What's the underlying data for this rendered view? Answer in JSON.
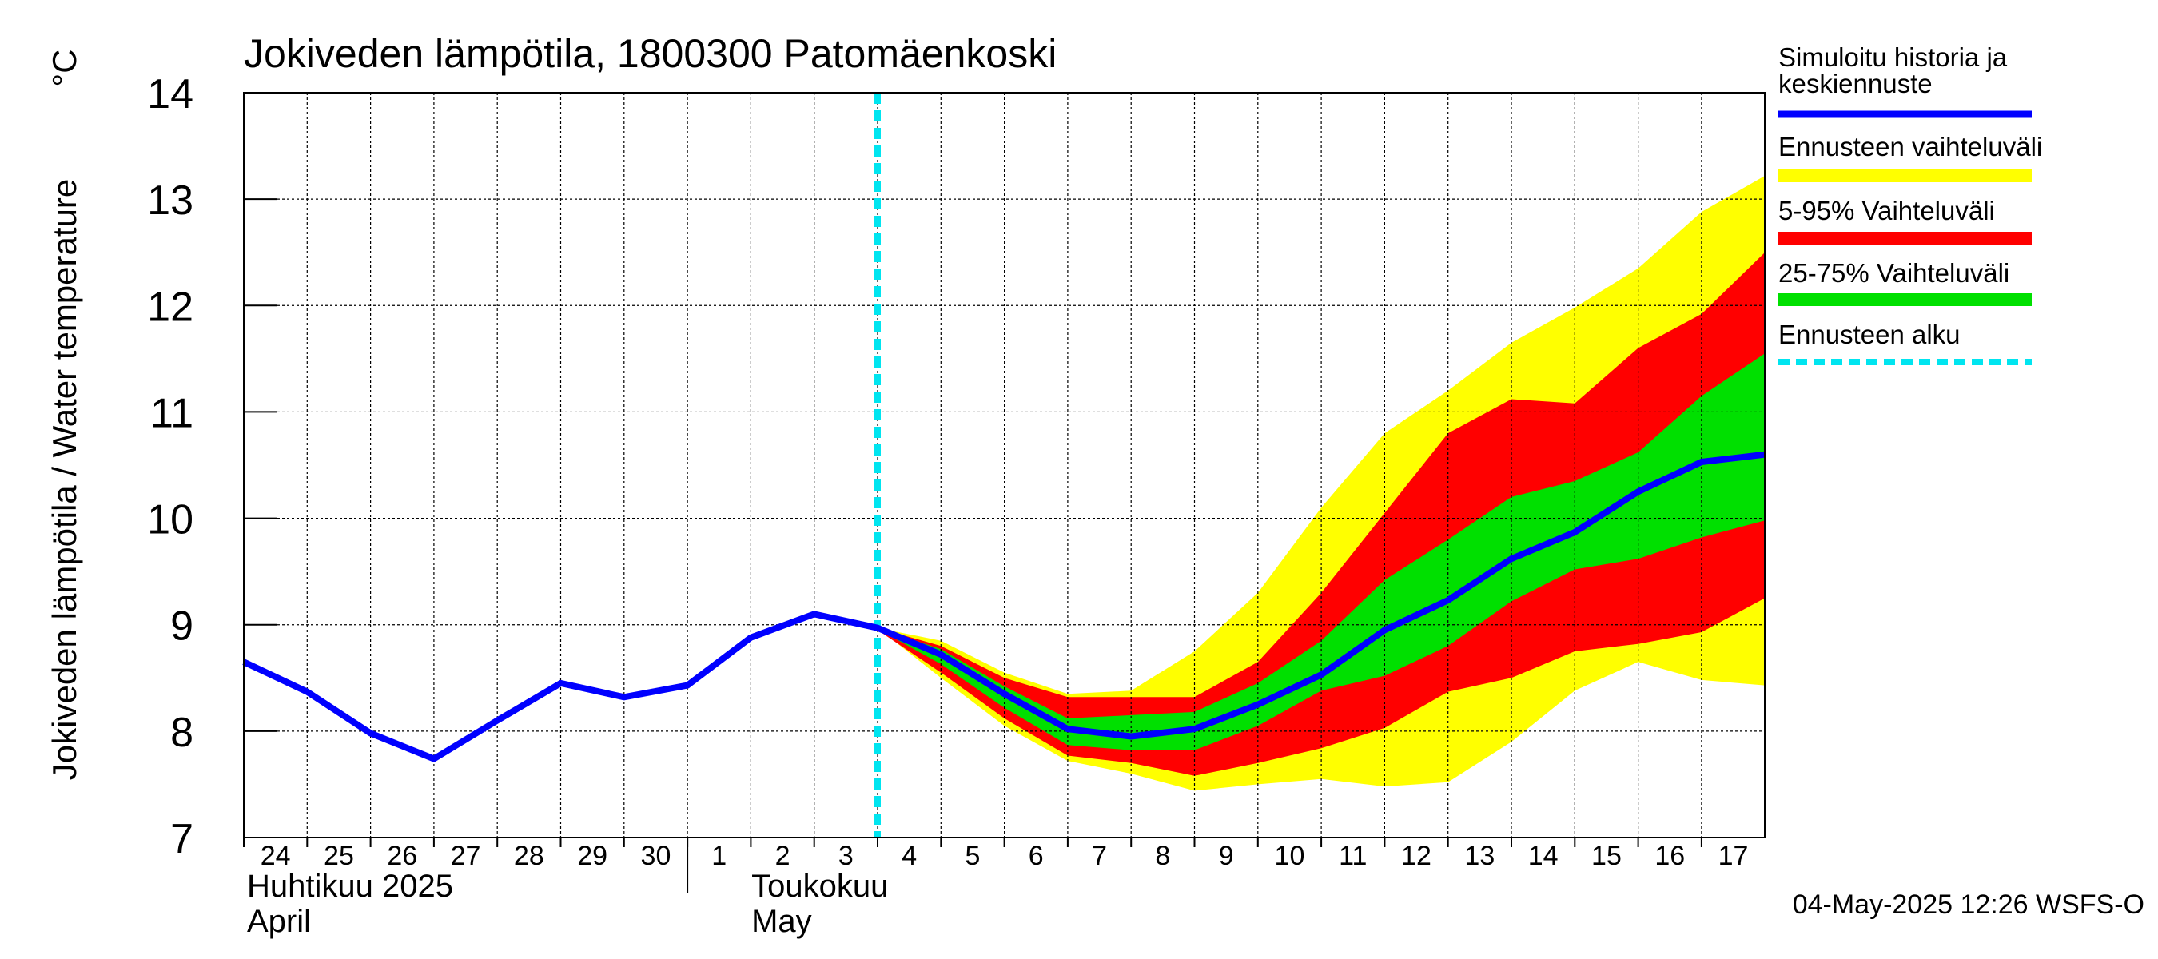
{
  "chart_data": {
    "type": "line",
    "title": "Jokiveden lämpötila, 1800300 Patomäenkoski",
    "ylabel": "Jokiveden lämpötila / Water temperature",
    "yunit": "°C",
    "ylim": [
      7,
      14
    ],
    "yticks": [
      7,
      8,
      9,
      10,
      11,
      12,
      13,
      14
    ],
    "x_start": "2025-04-24",
    "x_end": "2025-05-18",
    "x_tick_labels": [
      "24",
      "25",
      "26",
      "27",
      "28",
      "29",
      "30",
      "1",
      "2",
      "3",
      "4",
      "5",
      "6",
      "7",
      "8",
      "9",
      "10",
      "11",
      "12",
      "13",
      "14",
      "15",
      "16",
      "17"
    ],
    "month_labels": [
      {
        "fi": "Huhtikuu  2025",
        "en": "April",
        "date": "2025-04-24"
      },
      {
        "fi": "Toukokuu",
        "en": "May",
        "date": "2025-05-01"
      }
    ],
    "forecast_start": "2025-05-04",
    "grid": true,
    "legend_position": "right",
    "series": [
      {
        "name": "Simuloitu historia ja keskiennuste",
        "color": "#0000ff",
        "kind": "line",
        "x": [
          "2025-04-24",
          "2025-04-25",
          "2025-04-26",
          "2025-04-27",
          "2025-04-28",
          "2025-04-29",
          "2025-04-30",
          "2025-05-01",
          "2025-05-02",
          "2025-05-03",
          "2025-05-04",
          "2025-05-05",
          "2025-05-06",
          "2025-05-07",
          "2025-05-08",
          "2025-05-09",
          "2025-05-10",
          "2025-05-11",
          "2025-05-12",
          "2025-05-13",
          "2025-05-14",
          "2025-05-15",
          "2025-05-16",
          "2025-05-17",
          "2025-05-18"
        ],
        "values": [
          8.65,
          8.37,
          7.98,
          7.74,
          8.1,
          8.45,
          8.32,
          8.43,
          8.88,
          9.1,
          8.97,
          8.72,
          8.35,
          8.02,
          7.95,
          8.02,
          8.25,
          8.53,
          8.95,
          9.23,
          9.62,
          9.87,
          10.25,
          10.53,
          10.6
        ]
      },
      {
        "name": "Ennusteen vaihteluväli",
        "color": "#ffff00",
        "kind": "band",
        "x": [
          "2025-05-04",
          "2025-05-05",
          "2025-05-06",
          "2025-05-07",
          "2025-05-08",
          "2025-05-09",
          "2025-05-10",
          "2025-05-11",
          "2025-05-12",
          "2025-05-13",
          "2025-05-14",
          "2025-05-15",
          "2025-05-16",
          "2025-05-17",
          "2025-05-18"
        ],
        "lower": [
          8.97,
          8.5,
          8.05,
          7.72,
          7.6,
          7.44,
          7.5,
          7.55,
          7.48,
          7.52,
          7.9,
          8.38,
          8.65,
          8.48,
          8.43
        ],
        "upper": [
          8.97,
          8.85,
          8.55,
          8.35,
          8.38,
          8.75,
          9.3,
          10.1,
          10.8,
          11.2,
          11.65,
          11.98,
          12.35,
          12.88,
          13.22
        ]
      },
      {
        "name": "5-95% Vaihteluväli",
        "color": "#ff0000",
        "kind": "band",
        "x": [
          "2025-05-04",
          "2025-05-05",
          "2025-05-06",
          "2025-05-07",
          "2025-05-08",
          "2025-05-09",
          "2025-05-10",
          "2025-05-11",
          "2025-05-12",
          "2025-05-13",
          "2025-05-14",
          "2025-05-15",
          "2025-05-16",
          "2025-05-17",
          "2025-05-18"
        ],
        "lower": [
          8.95,
          8.55,
          8.12,
          7.77,
          7.7,
          7.58,
          7.7,
          7.84,
          8.03,
          8.37,
          8.5,
          8.75,
          8.82,
          8.93,
          9.25
        ],
        "upper": [
          8.97,
          8.8,
          8.5,
          8.32,
          8.32,
          8.32,
          8.65,
          9.3,
          10.05,
          10.8,
          11.12,
          11.08,
          11.6,
          11.92,
          12.5
        ]
      },
      {
        "name": "25-75% Vaihteluväli",
        "color": "#00e000",
        "kind": "band",
        "x": [
          "2025-05-04",
          "2025-05-05",
          "2025-05-06",
          "2025-05-07",
          "2025-05-08",
          "2025-05-09",
          "2025-05-10",
          "2025-05-11",
          "2025-05-12",
          "2025-05-13",
          "2025-05-14",
          "2025-05-15",
          "2025-05-16",
          "2025-05-17",
          "2025-05-18"
        ],
        "lower": [
          8.96,
          8.63,
          8.22,
          7.87,
          7.82,
          7.82,
          8.05,
          8.38,
          8.52,
          8.8,
          9.22,
          9.52,
          9.62,
          9.82,
          9.98
        ],
        "upper": [
          8.97,
          8.77,
          8.42,
          8.12,
          8.15,
          8.18,
          8.45,
          8.85,
          9.42,
          9.8,
          10.2,
          10.35,
          10.62,
          11.15,
          11.55
        ]
      },
      {
        "name": "Ennusteen alku",
        "color": "#00e5f0",
        "kind": "vline",
        "x": [
          "2025-05-04"
        ]
      }
    ]
  },
  "footer": "04-May-2025 12:26 WSFS-O"
}
